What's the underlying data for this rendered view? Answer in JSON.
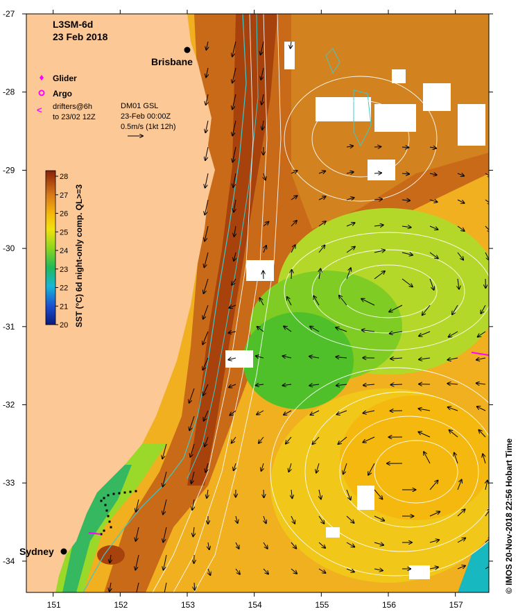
{
  "title": {
    "product": "L3SM-6d",
    "date": "23 Feb 2018"
  },
  "cities": [
    {
      "name": "Brisbane",
      "lon": 153.03,
      "lat": -27.47
    },
    {
      "name": "Sydney",
      "lon": 151.21,
      "lat": -33.87
    }
  ],
  "legend": {
    "glider": "Glider",
    "argo": "Argo",
    "drifters_line1": "drifters@6h",
    "drifters_line2": "to 23/02 12Z",
    "drifter_symbol": "<"
  },
  "current_info": {
    "line1": "DM01 GSL",
    "line2": "23-Feb 00:00Z",
    "line3": "0.5m/s (1kt 12h)"
  },
  "colorbar": {
    "label": "SST (°C) 6d night-only comp. QL>=3",
    "ticks": [
      "28",
      "27",
      "26",
      "25",
      "24",
      "23",
      "22",
      "21",
      "20"
    ],
    "min": 20,
    "max": 28.3
  },
  "axes": {
    "x_ticks": [
      "151",
      "152",
      "153",
      "154",
      "155",
      "156",
      "157"
    ],
    "y_ticks": [
      "-27",
      "-28",
      "-29",
      "-30",
      "-31",
      "-32",
      "-33",
      "-34"
    ],
    "lon_range": [
      150.6,
      157.5
    ],
    "lat_range": [
      -34.4,
      -27.0
    ]
  },
  "copyright": "© IMOS 20-Nov-2018 22:56 Hobart Time",
  "colors": {
    "land": "#fcc895",
    "glider": "#ff00ff",
    "argo": "#ff00ff",
    "contour": "#ffffff",
    "shelf_contour": "#40c8c8",
    "track": "#000000"
  },
  "icons": [
    "city-dot-icon",
    "glider-diamond-icon",
    "argo-circle-icon",
    "drifter-arrow-icon",
    "velocity-scale-arrow-icon"
  ]
}
